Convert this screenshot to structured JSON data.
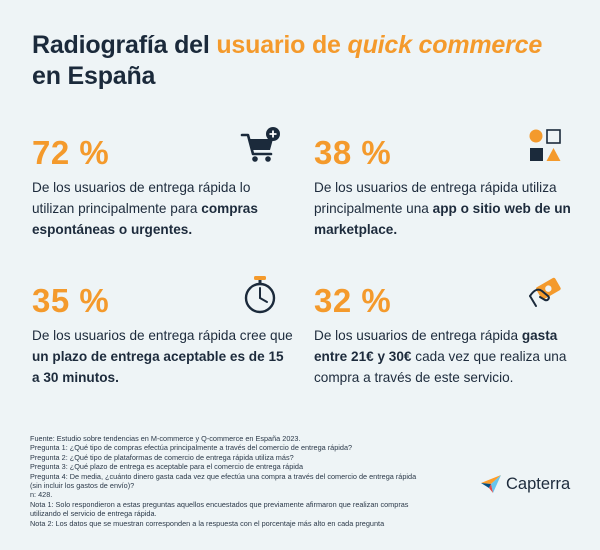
{
  "title": {
    "part1": "Radiografía del ",
    "part2": "usuario de ",
    "part3": "quick commerce",
    "part4": "en España"
  },
  "stats": [
    {
      "value": "72 %",
      "text1": "De los usuarios de entrega rápida lo utilizan principalmente para ",
      "bold1": "compras espontáneas o urgentes.",
      "icon": "shopping-cart-plus-icon"
    },
    {
      "value": "38 %",
      "text1": "De los usuarios de entrega rápida utiliza principalmente una ",
      "bold1": "app o sitio web de un marketplace.",
      "icon": "shapes-icon"
    },
    {
      "value": "35 %",
      "text1": "De los usuarios de entrega rápida cree que ",
      "bold1": "un plazo de entrega aceptable es de 15 a 30 minutos.",
      "icon": "stopwatch-icon"
    },
    {
      "value": "32 %",
      "text1": "De los usuarios de entrega rápida ",
      "bold1": "gasta entre 21€ y 30€",
      "text2": " cada vez que realiza una compra a través de este servicio.",
      "icon": "hand-money-icon"
    }
  ],
  "footer": {
    "lines": [
      "Fuente: Estudio sobre tendencias en M-commerce y Q-commerce en España 2023.",
      "Pregunta 1: ¿Qué tipo de compras efectúa principalmente a través del comercio de entrega rápida?",
      "Pregunta 2: ¿Qué tipo de plataformas de comercio de entrega rápida utiliza más?",
      "Pregunta 3: ¿Qué plazo de entrega es aceptable para el comercio de entrega rápida",
      "Pregunta 4: De media, ¿cuánto dinero gasta cada vez que efectúa una compra a través del comercio de entrega rápida",
      "(sin incluir los gastos de envío)?",
      "n: 428.",
      "Nota 1: Solo respondieron a estas preguntas aquellos encuestados que previamente afirmaron que realizan compras",
      "utilizando el servicio de entrega rápida.",
      "Nota 2: Los datos que se muestran corresponden a la respuesta con el porcentaje más alto en cada pregunta"
    ]
  },
  "logo": {
    "text": "Capterra"
  },
  "colors": {
    "accent": "#f49a2c",
    "dark": "#1b2a3b",
    "background": "#eef4f6"
  }
}
